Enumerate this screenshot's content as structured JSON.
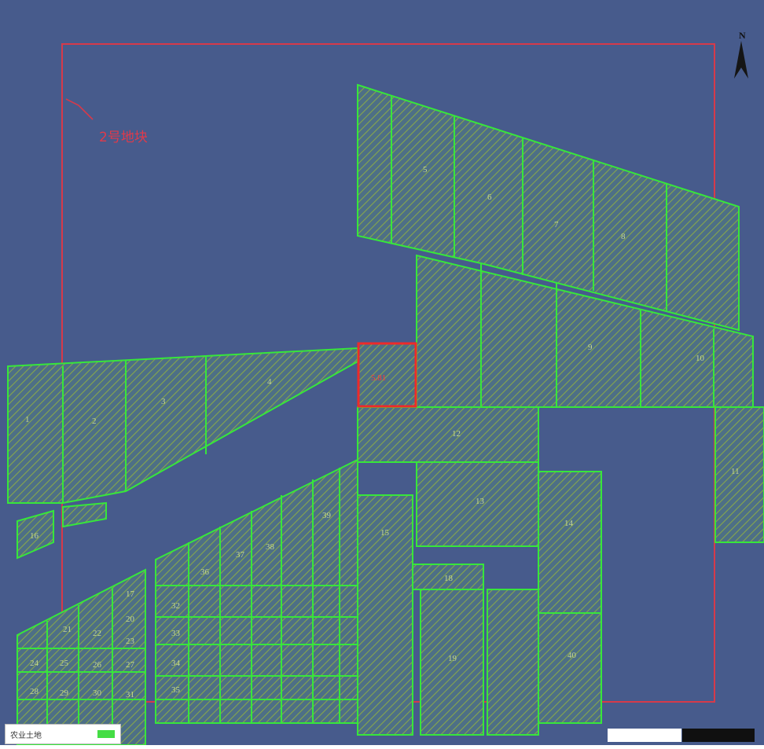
{
  "title_annotation": "2号地块",
  "center_parcel_label": "5.81",
  "colors": {
    "background": "#475b8c",
    "boundary": "#d63a4a",
    "parcel_stroke": "#37e63b",
    "hatch": "#7fa24e",
    "center_parcel": "#ee2a2a"
  },
  "north_arrow": {
    "icon": "north-arrow-icon",
    "letter": "N"
  },
  "parcel_labels": [
    "1",
    "2",
    "3",
    "4",
    "5",
    "6",
    "7",
    "8",
    "9",
    "10",
    "11",
    "12",
    "13",
    "14",
    "15",
    "16",
    "17",
    "18",
    "19",
    "20",
    "21",
    "22",
    "23",
    "24",
    "25",
    "26",
    "27",
    "28",
    "29",
    "30",
    "31",
    "32",
    "33",
    "34",
    "35",
    "36",
    "37",
    "38",
    "39",
    "40"
  ],
  "legend": {
    "label": "农业土地",
    "swatch_color": "#44dd44"
  },
  "scalebar": {
    "segments": [
      "white",
      "black"
    ]
  }
}
